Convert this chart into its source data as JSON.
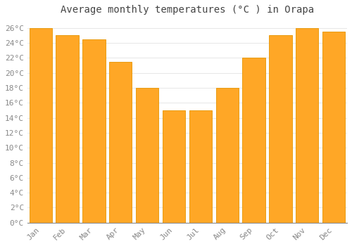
{
  "months": [
    "Jan",
    "Feb",
    "Mar",
    "Apr",
    "May",
    "Jun",
    "Jul",
    "Aug",
    "Sep",
    "Oct",
    "Nov",
    "Dec"
  ],
  "values": [
    26,
    25,
    24.5,
    21.5,
    18,
    15,
    15,
    18,
    22,
    25,
    26,
    25.5
  ],
  "bar_color": "#FFA726",
  "bar_edge_color": "#E59400",
  "background_color": "#FFFFFF",
  "plot_bg_color": "#FFFFFF",
  "grid_color": "#DDDDDD",
  "title": "Average monthly temperatures (°C ) in Orapa",
  "title_fontsize": 10,
  "tick_label_fontsize": 8,
  "ytick_color": "#888888",
  "xtick_color": "#888888",
  "title_color": "#444444",
  "ylim": [
    0,
    27
  ],
  "ytick_step": 2,
  "bar_width": 0.85,
  "font_family": "monospace"
}
